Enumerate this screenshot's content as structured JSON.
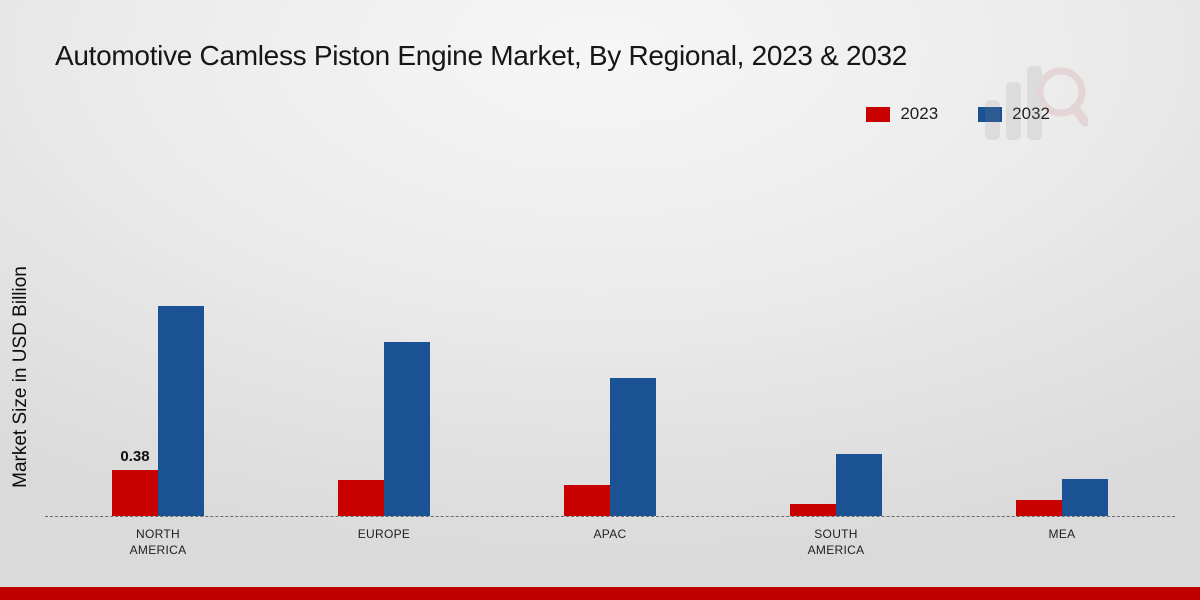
{
  "title": "Automotive Camless Piston Engine Market, By Regional, 2023 & 2032",
  "ylabel": "Market Size in USD Billion",
  "chart_data": {
    "type": "bar",
    "title": "Automotive Camless Piston Engine Market, By Regional, 2023 & 2032",
    "xlabel": "",
    "ylabel": "Market Size in USD Billion",
    "categories": [
      "NORTH AMERICA",
      "EUROPE",
      "APAC",
      "SOUTH AMERICA",
      "MEA"
    ],
    "series": [
      {
        "name": "2023",
        "color": "#c80000",
        "values": [
          0.38,
          0.3,
          0.26,
          0.1,
          0.13
        ]
      },
      {
        "name": "2032",
        "color": "#1b5294",
        "values": [
          1.75,
          1.45,
          1.15,
          0.52,
          0.31
        ]
      }
    ],
    "ylim": [
      0,
      2
    ],
    "grid": false,
    "legend_position": "top-right",
    "baseline_style": "dashed",
    "value_labels": [
      {
        "series": "2023",
        "category": "NORTH AMERICA",
        "text": "0.38"
      }
    ]
  },
  "legend": [
    {
      "label": "2023",
      "color": "#c80000"
    },
    {
      "label": "2032",
      "color": "#1b5294"
    }
  ],
  "footer": {
    "accent_bar_color": "#c00000"
  },
  "watermark": "bar-chart-magnifier-logo"
}
